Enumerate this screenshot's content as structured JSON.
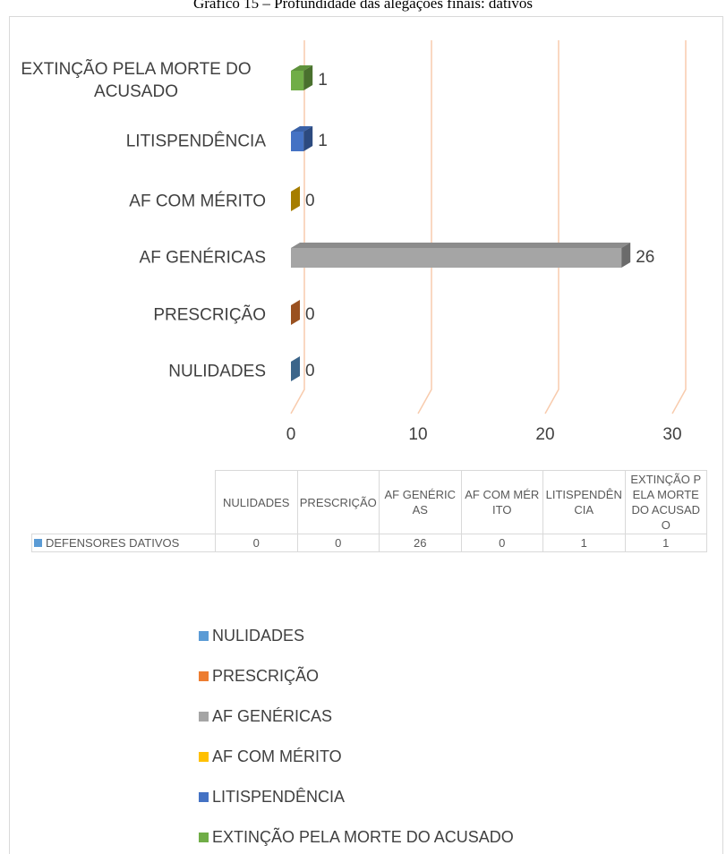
{
  "chart_data": {
    "type": "bar",
    "orientation": "horizontal",
    "title": "Gráfico 15 – Profundidade das alegações finais: dativos",
    "categories": [
      "NULIDADES",
      "PRESCRIÇÃO",
      "AF GENÉRICAS",
      "AF COM MÉRITO",
      "LITISPENDÊNCIA",
      "EXTINÇÃO PELA MORTE DO ACUSADO"
    ],
    "colors": [
      "#5b9bd5",
      "#ed7d31",
      "#a5a5a5",
      "#ffc000",
      "#4472c4",
      "#70ad47"
    ],
    "series": [
      {
        "name": "DEFENSORES DATIVOS",
        "values": [
          0,
          0,
          26,
          0,
          1,
          1
        ]
      }
    ],
    "xlim": [
      0,
      30
    ],
    "xticks": [
      0,
      10,
      20,
      30
    ],
    "grid": true,
    "grid_color": "#f8cbad",
    "data_table": true,
    "legend": "bottom"
  }
}
